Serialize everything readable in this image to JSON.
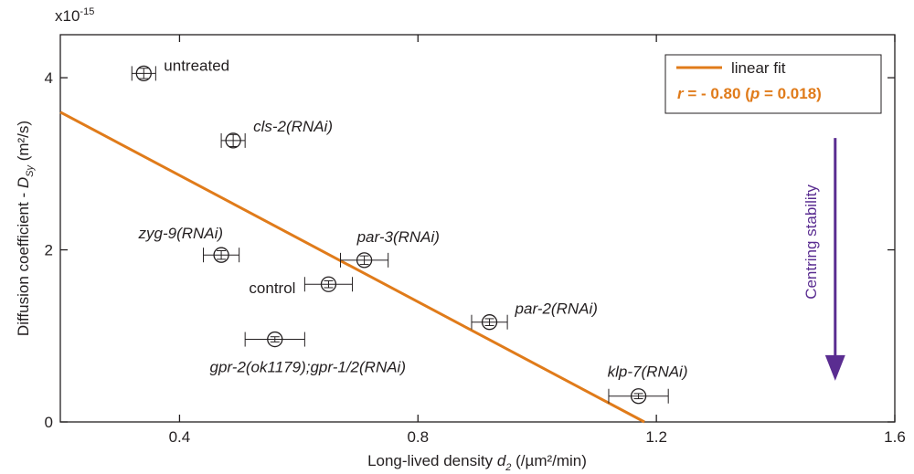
{
  "chart_data": {
    "type": "scatter",
    "title": "",
    "xlabel": {
      "main": "Long-lived density ",
      "var": "d",
      "sub": "2",
      "unit": " (/µm²/min)"
    },
    "ylabel": {
      "main": "Diffusion coefficient - ",
      "var": "D",
      "sub": "Sy",
      "unit": " (m²/s)"
    },
    "y_multiplier": {
      "base": "x10",
      "exp": "-15"
    },
    "xlim": [
      0.2,
      1.6
    ],
    "ylim": [
      0,
      4.5
    ],
    "x_ticks": [
      0.4,
      0.8,
      1.2,
      1.6
    ],
    "x_tick_labels": [
      "0.4",
      "0.8",
      "1.2",
      "1.6"
    ],
    "y_ticks": [
      0,
      2,
      4
    ],
    "y_tick_labels": [
      "0",
      "2",
      "4"
    ],
    "grid": false,
    "points": [
      {
        "label": "untreated",
        "italic": false,
        "x": 0.34,
        "y": 4.05,
        "xerr": 0.02,
        "yerr": 0.06
      },
      {
        "label": "cls-2(RNAi)",
        "italic": true,
        "x": 0.49,
        "y": 3.27,
        "xerr": 0.02,
        "yerr": 0.07
      },
      {
        "label": "zyg-9(RNAi)",
        "italic": true,
        "x": 0.47,
        "y": 1.94,
        "xerr": 0.03,
        "yerr": 0.05
      },
      {
        "label": "par-3(RNAi)",
        "italic": true,
        "x": 0.71,
        "y": 1.88,
        "xerr": 0.04,
        "yerr": 0.05
      },
      {
        "label": "control",
        "italic": false,
        "x": 0.65,
        "y": 1.6,
        "xerr": 0.04,
        "yerr": 0.04
      },
      {
        "label": "par-2(RNAi)",
        "italic": true,
        "x": 0.92,
        "y": 1.16,
        "xerr": 0.03,
        "yerr": 0.04
      },
      {
        "label": "gpr-2(ok1179);gpr-1/2(RNAi)",
        "italic": true,
        "x": 0.56,
        "y": 0.96,
        "xerr": 0.05,
        "yerr": 0.03
      },
      {
        "label": "klp-7(RNAi)",
        "italic": true,
        "x": 1.17,
        "y": 0.3,
        "xerr": 0.05,
        "yerr": 0.03
      }
    ],
    "fit": {
      "x": [
        0.2,
        1.18
      ],
      "y": [
        3.6,
        0.0
      ],
      "color": "#e07b1a"
    },
    "legend": {
      "position": "top-right",
      "entry": "linear fit",
      "stat": {
        "r_label": "r",
        "r_text": " = - 0.80 (",
        "p_label": "p",
        "p_text": " = 0.018)"
      }
    },
    "annotation": {
      "text": "Centring stability",
      "color": "#5a2d91",
      "from_y": 3.3,
      "to_y": 0.5,
      "x": 1.5
    }
  }
}
